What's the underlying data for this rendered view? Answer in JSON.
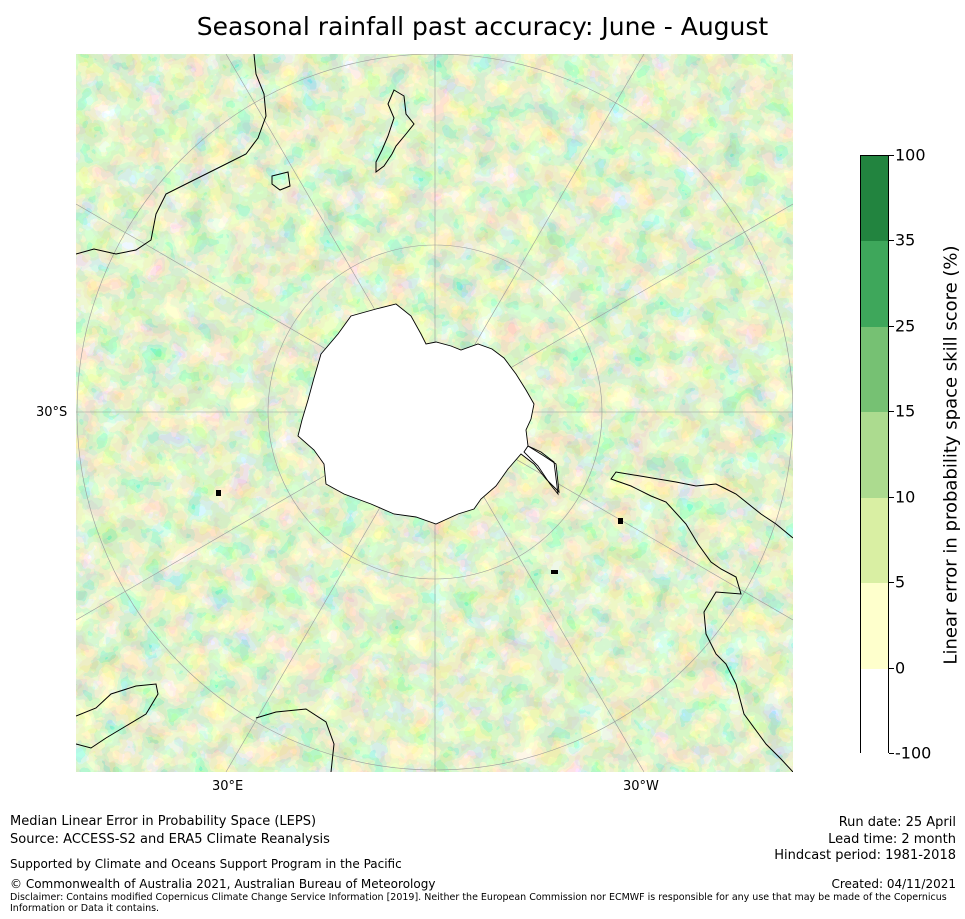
{
  "title": "Seasonal rainfall past accuracy: June - August",
  "map": {
    "latitude_label": "30°S",
    "longitude_labels": [
      "30°E",
      "30°W"
    ],
    "projection": "south polar stereographic"
  },
  "colorbar": {
    "label": "Linear error in probability space skill score (%)",
    "ticks": [
      "100",
      "35",
      "25",
      "15",
      "10",
      "5",
      "0",
      "-100"
    ],
    "colors": [
      "#22843f",
      "#3ea75b",
      "#76c173",
      "#acdb8f",
      "#d9efa3",
      "#feffcc",
      "#ffffff"
    ],
    "bins": [
      {
        "from": 35,
        "to": 100,
        "color": "#22843f"
      },
      {
        "from": 25,
        "to": 35,
        "color": "#3ea75b"
      },
      {
        "from": 15,
        "to": 25,
        "color": "#76c173"
      },
      {
        "from": 10,
        "to": 15,
        "color": "#acdb8f"
      },
      {
        "from": 5,
        "to": 10,
        "color": "#d9efa3"
      },
      {
        "from": 0,
        "to": 5,
        "color": "#feffcc"
      },
      {
        "from": -100,
        "to": 0,
        "color": "#ffffff"
      }
    ]
  },
  "footer": {
    "description": "Median Linear Error in Probability Space (LEPS)",
    "source": "Source: ACCESS-S2 and ERA5 Climate Reanalysis",
    "support": "Supported by Climate and Oceans Support Program in the Pacific",
    "copyright": "© Commonwealth of Australia 2021, Australian Bureau of Meteorology",
    "disclaimer": "Disclaimer: Contains modified Copernicus Climate Change Service Information [2019]. Neither the European Commission nor ECMWF is responsible for any use that may be made of the Copernicus Information or Data it contains.",
    "run_date": "Run date: 25 April",
    "lead_time": "Lead time: 2 month",
    "hindcast": "Hindcast period: 1981-2018",
    "created": "Created: 04/11/2021"
  }
}
